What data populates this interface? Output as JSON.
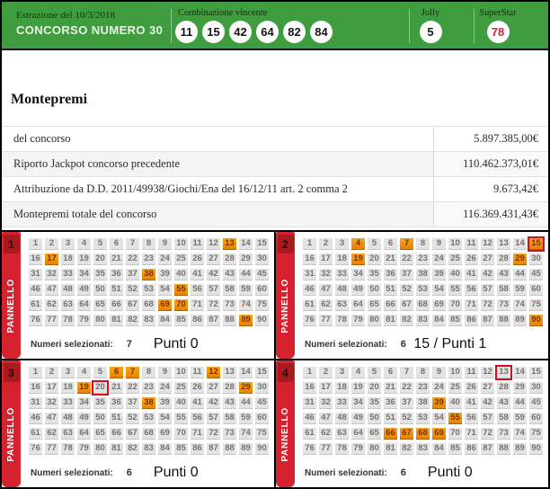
{
  "header": {
    "draw_date_label": "Estrazione del 10/3/2018",
    "contest_label": "CONCORSO NUMERO 30",
    "winning_label": "Combinazione vincente",
    "winning_numbers": [
      "11",
      "15",
      "42",
      "64",
      "82",
      "84"
    ],
    "jolly_label": "Jolly",
    "jolly_number": "5",
    "superstar_label": "SuperStar",
    "superstar_number": "78"
  },
  "montepremi": {
    "title": "Montepremi",
    "rows": [
      {
        "label": "del concorso",
        "value": "5.897.385,00€"
      },
      {
        "label": "Riporto Jackpot concorso precedente",
        "value": "110.462.373,01€"
      },
      {
        "label": "Attribuzione da D.D. 2011/49938/Giochi/Ena del 16/12/11 art. 2 comma 2",
        "value": "9.673,42€"
      },
      {
        "label": "Montepremi totale del concorso",
        "value": "116.369.431,43€"
      }
    ]
  },
  "panels_section": {
    "side_label": "PANNELLO",
    "selected_label": "Numeri selezionati:",
    "grid_max": 90,
    "panels": [
      {
        "number": "1",
        "selected": [
          13,
          17,
          38,
          55,
          69,
          70,
          89
        ],
        "red_boxed": [],
        "selected_count": "7",
        "result": "Punti 0"
      },
      {
        "number": "2",
        "selected": [
          4,
          7,
          15,
          19,
          29,
          90
        ],
        "red_boxed": [
          15
        ],
        "selected_count": "6",
        "result": "15 / Punti 1"
      },
      {
        "number": "3",
        "selected": [
          6,
          7,
          12,
          19,
          29,
          38
        ],
        "red_boxed": [
          20
        ],
        "selected_count": "6",
        "result": "Punti 0"
      },
      {
        "number": "4",
        "selected": [
          39,
          55,
          66,
          67,
          68,
          69
        ],
        "red_boxed": [
          13
        ],
        "selected_count": "6",
        "result": "Punti 0"
      }
    ]
  },
  "colors": {
    "header_green": "#3f9d40",
    "panel_strip_red": "#d4222e",
    "panel_badge_red": "#a81a1f",
    "highlight_orange_top": "#f6a41f",
    "highlight_orange_bottom": "#e98203",
    "red_box_border": "#cf1021",
    "superstar_number_red": "#d6203c"
  }
}
